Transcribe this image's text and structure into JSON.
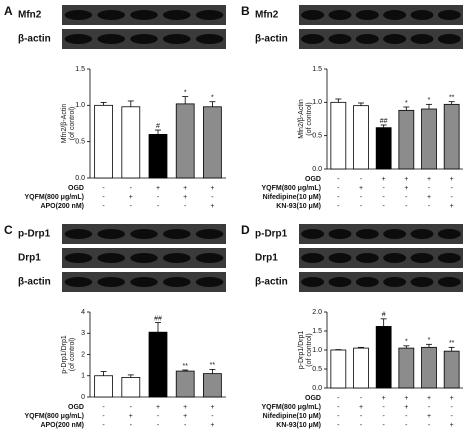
{
  "chart_data": [
    {
      "type": "bar",
      "panel": "A",
      "blots": [
        "Mfn2",
        "β-actin"
      ],
      "y_label": [
        "Mfn2/β-Actin",
        "(of control)"
      ],
      "values": [
        1.0,
        0.98,
        0.6,
        1.02,
        0.98
      ],
      "errors": [
        0.04,
        0.08,
        0.06,
        0.1,
        0.07
      ],
      "colors": [
        "#ffffff",
        "#ffffff",
        "#000000",
        "#8c8c8c",
        "#8c8c8c"
      ],
      "significance": [
        null,
        null,
        "#",
        "*",
        "*"
      ],
      "ylim": [
        0,
        1.5
      ],
      "yticks": [
        {
          "value": 0,
          "label": "0.0"
        },
        0.5,
        {
          "value": 1,
          "label": "1.0"
        },
        1.5
      ],
      "treatments": [
        {
          "name": "OGD",
          "signs": [
            "-",
            "-",
            "+",
            "+",
            "+"
          ]
        },
        {
          "name": "YQFM(800 μg/mL)",
          "signs": [
            "-",
            "+",
            "-",
            "+",
            "-"
          ]
        },
        {
          "name": "APO(200 nM)",
          "signs": [
            "-",
            "-",
            "-",
            "-",
            "+"
          ]
        }
      ]
    },
    {
      "type": "bar",
      "panel": "B",
      "blots": [
        "Mfn2",
        "β-actin"
      ],
      "y_label": [
        "Mfn2/β-Actin",
        "(of control)"
      ],
      "values": [
        1.0,
        0.95,
        0.62,
        0.88,
        0.9,
        0.97
      ],
      "errors": [
        0.05,
        0.04,
        0.04,
        0.05,
        0.07,
        0.04
      ],
      "colors": [
        "#ffffff",
        "#ffffff",
        "#000000",
        "#8c8c8c",
        "#8c8c8c",
        "#8c8c8c"
      ],
      "significance": [
        null,
        null,
        "##",
        "*",
        "*",
        "**"
      ],
      "ylim": [
        0,
        1.5
      ],
      "yticks": [
        {
          "value": 0,
          "label": "0.0"
        },
        0.5,
        {
          "value": 1,
          "label": "1.0"
        },
        1.5
      ],
      "treatments": [
        {
          "name": "OGD",
          "signs": [
            "-",
            "-",
            "+",
            "+",
            "+",
            "+"
          ]
        },
        {
          "name": "YQFM(800 μg/mL)",
          "signs": [
            "-",
            "+",
            "-",
            "+",
            "-",
            "-"
          ]
        },
        {
          "name": "Nifedipine(10 μM)",
          "signs": [
            "-",
            "-",
            "-",
            "-",
            "+",
            "-"
          ]
        },
        {
          "name": "KN-93(10 μM)",
          "signs": [
            "-",
            "-",
            "-",
            "-",
            "-",
            "+"
          ]
        }
      ]
    },
    {
      "type": "bar",
      "panel": "C",
      "blots": [
        "p-Drp1",
        "Drp1",
        "β-actin"
      ],
      "y_label": [
        "p-Drp1/Drp1",
        "(of control)"
      ],
      "values": [
        1.0,
        0.92,
        3.05,
        1.22,
        1.1
      ],
      "errors": [
        0.2,
        0.12,
        0.45,
        0.05,
        0.2
      ],
      "colors": [
        "#ffffff",
        "#ffffff",
        "#000000",
        "#8c8c8c",
        "#8c8c8c"
      ],
      "significance": [
        null,
        null,
        "##",
        "**",
        "**"
      ],
      "ylim": [
        0,
        4
      ],
      "yticks": [
        0,
        1,
        2,
        3,
        4
      ],
      "treatments": [
        {
          "name": "OGD",
          "signs": [
            "-",
            "-",
            "+",
            "+",
            "+"
          ]
        },
        {
          "name": "YQFM(800 μg/mL)",
          "signs": [
            "-",
            "+",
            "-",
            "+",
            "-"
          ]
        },
        {
          "name": "APO(200 nM)",
          "signs": [
            "-",
            "-",
            "-",
            "-",
            "+"
          ]
        }
      ]
    },
    {
      "type": "bar",
      "panel": "D",
      "blots": [
        "p-Drp1",
        "Drp1",
        "β-actin"
      ],
      "y_label": [
        "p-Drp1/Drp1",
        "(of control)"
      ],
      "values": [
        1.0,
        1.05,
        1.62,
        1.05,
        1.07,
        0.97
      ],
      "errors": [
        0.01,
        0.02,
        0.2,
        0.06,
        0.08,
        0.1
      ],
      "colors": [
        "#ffffff",
        "#ffffff",
        "#000000",
        "#8c8c8c",
        "#8c8c8c",
        "#8c8c8c"
      ],
      "significance": [
        null,
        null,
        "#",
        "*",
        "*",
        "**"
      ],
      "ylim": [
        0,
        2
      ],
      "yticks": [
        {
          "value": 0,
          "label": "0.0"
        },
        0.5,
        {
          "value": 1,
          "label": "1.0"
        },
        1.5,
        {
          "value": 2,
          "label": "2.0"
        }
      ],
      "treatments": [
        {
          "name": "OGD",
          "signs": [
            "-",
            "-",
            "+",
            "+",
            "+",
            "+"
          ]
        },
        {
          "name": "YQFM(800 μg/mL)",
          "signs": [
            "-",
            "+",
            "-",
            "+",
            "-",
            "-"
          ]
        },
        {
          "name": "Nifedipine(10 μM)",
          "signs": [
            "-",
            "-",
            "-",
            "-",
            "+",
            "-"
          ]
        },
        {
          "name": "KN-93(10 μM)",
          "signs": [
            "-",
            "-",
            "-",
            "-",
            "-",
            "+"
          ]
        }
      ]
    }
  ]
}
